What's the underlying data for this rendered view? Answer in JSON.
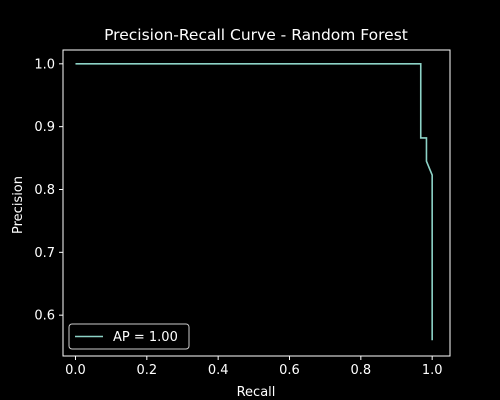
{
  "chart_data": {
    "type": "line",
    "title": "Precision-Recall Curve - Random Forest",
    "xlabel": "Recall",
    "ylabel": "Precision",
    "xlim": [
      -0.035,
      1.05
    ],
    "ylim": [
      0.535,
      1.022
    ],
    "xticks": [
      0.0,
      0.2,
      0.4,
      0.6,
      0.8,
      1.0
    ],
    "xtick_labels": [
      "0.0",
      "0.2",
      "0.4",
      "0.6",
      "0.8",
      "1.0"
    ],
    "yticks": [
      0.6,
      0.7,
      0.8,
      0.9,
      1.0
    ],
    "ytick_labels": [
      "0.6",
      "0.7",
      "0.8",
      "0.9",
      "1.0"
    ],
    "grid": false,
    "legend_position": "lower-left",
    "background_color": "#000000",
    "foreground_color": "#ffffff",
    "series": [
      {
        "name": "AP = 1.00",
        "color": "#8dd3c7",
        "step": "post",
        "x": [
          0.0,
          0.968,
          0.968,
          0.968,
          0.984,
          0.984,
          0.984,
          1.0,
          1.0
        ],
        "y": [
          1.0,
          1.0,
          0.882,
          0.882,
          0.882,
          0.882,
          0.845,
          0.823,
          0.56
        ]
      }
    ]
  }
}
